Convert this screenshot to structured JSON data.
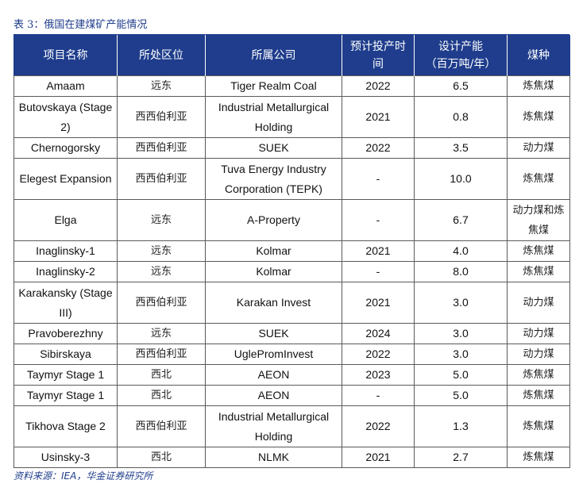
{
  "caption": "表 3：俄国在建煤矿产能情况",
  "headers": [
    "项目名称",
    "所处区位",
    "所属公司",
    "预计投产时间",
    "设计产能\n（百万吨/年）",
    "煤种"
  ],
  "rows": [
    [
      "Amaam",
      "远东",
      "Tiger Realm Coal",
      "2022",
      "6.5",
      "炼焦煤"
    ],
    [
      "Butovskaya (Stage 2)",
      "西西伯利亚",
      "Industrial Metallurgical Holding",
      "2021",
      "0.8",
      "炼焦煤"
    ],
    [
      "Chernogorsky",
      "西西伯利亚",
      "SUEK",
      "2022",
      "3.5",
      "动力煤"
    ],
    [
      "Elegest Expansion",
      "西西伯利亚",
      "Tuva Energy Industry Corporation (TEPK)",
      "-",
      "10.0",
      "炼焦煤"
    ],
    [
      "Elga",
      "远东",
      "A-Property",
      "-",
      "6.7",
      "动力煤和炼焦煤"
    ],
    [
      "Inaglinsky-1",
      "远东",
      "Kolmar",
      "2021",
      "4.0",
      "炼焦煤"
    ],
    [
      "Inaglinsky-2",
      "远东",
      "Kolmar",
      "-",
      "8.0",
      "炼焦煤"
    ],
    [
      "Karakansky (Stage III)",
      "西西伯利亚",
      "Karakan Invest",
      "2021",
      "3.0",
      "动力煤"
    ],
    [
      "Pravoberezhny",
      "远东",
      "SUEK",
      "2024",
      "3.0",
      "动力煤"
    ],
    [
      "Sibirskaya",
      "西西伯利亚",
      "UglePromInvest",
      "2022",
      "3.0",
      "动力煤"
    ],
    [
      "Taymyr Stage 1",
      "西北",
      "AEON",
      "2023",
      "5.0",
      "炼焦煤"
    ],
    [
      "Taymyr Stage 1",
      "西北",
      "AEON",
      "-",
      "5.0",
      "炼焦煤"
    ],
    [
      "Tikhova Stage 2",
      "西西伯利亚",
      "Industrial Metallurgical Holding",
      "2022",
      "1.3",
      "炼焦煤"
    ],
    [
      "Usinsky-3",
      "西北",
      "NLMK",
      "2021",
      "2.7",
      "炼焦煤"
    ]
  ],
  "source": "资料来源：IEA，华金证券研究所"
}
